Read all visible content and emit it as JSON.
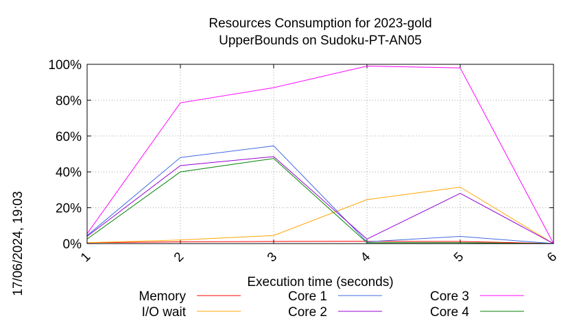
{
  "chart_data": {
    "type": "line",
    "title_line1": "Resources Consumption for 2023-gold",
    "title_line2": "UpperBounds on Sudoku-PT-AN05",
    "xlabel": "Execution time (seconds)",
    "ylabel": "",
    "side_label": "17/06/2024, 19:03",
    "x": [
      1,
      2,
      3,
      4,
      5,
      6
    ],
    "x_tick_labels": [
      "1",
      "2",
      "3",
      "4",
      "5",
      "6"
    ],
    "xlim": [
      1,
      6
    ],
    "ylim": [
      0,
      100
    ],
    "y_ticks": [
      0,
      20,
      40,
      60,
      80,
      100
    ],
    "y_tick_labels": [
      "0%",
      "20%",
      "40%",
      "60%",
      "80%",
      "100%"
    ],
    "grid": true,
    "legend_position": "bottom",
    "series": [
      {
        "name": "Memory",
        "color": "#ff0000",
        "values": [
          0.5,
          1.0,
          1.2,
          1.3,
          1.2,
          0
        ]
      },
      {
        "name": "I/O wait",
        "color": "#ffa500",
        "values": [
          0.5,
          2.0,
          4.5,
          24.5,
          31.5,
          0
        ]
      },
      {
        "name": "Core 1",
        "color": "#4169e1",
        "values": [
          4.5,
          48.0,
          54.5,
          1.0,
          4.0,
          0
        ]
      },
      {
        "name": "Core 2",
        "color": "#9400d3",
        "values": [
          4.0,
          43.5,
          48.5,
          2.5,
          28.0,
          0
        ]
      },
      {
        "name": "Core 3",
        "color": "#ff00ff",
        "values": [
          5.5,
          78.5,
          87.0,
          99.0,
          98.0,
          0
        ]
      },
      {
        "name": "Core 4",
        "color": "#008000",
        "values": [
          2.5,
          40.0,
          47.5,
          0.5,
          0.5,
          0
        ]
      }
    ]
  }
}
